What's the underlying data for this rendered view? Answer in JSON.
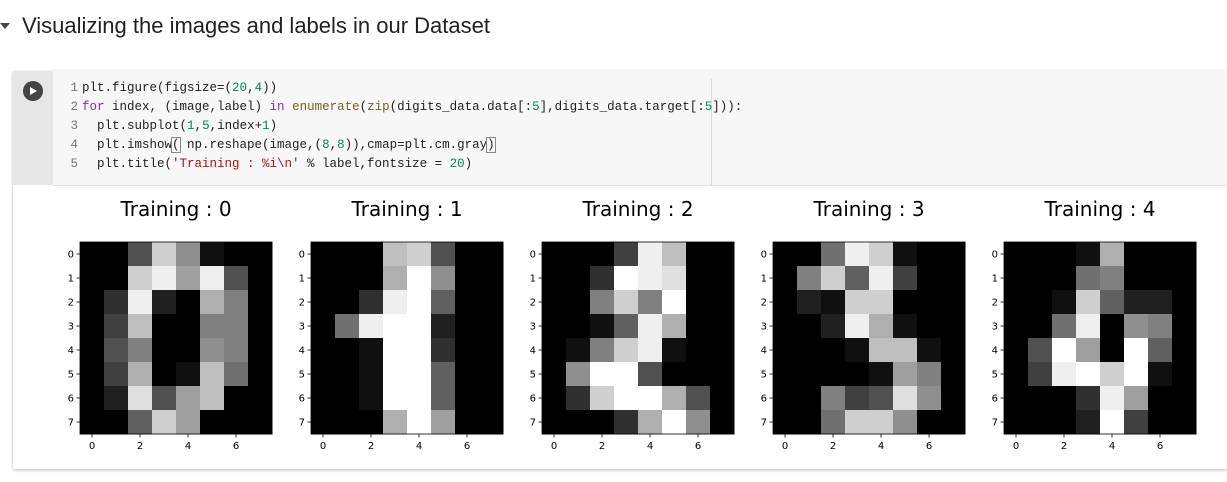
{
  "section": {
    "title": "Visualizing the images and labels in our Dataset"
  },
  "code_cell": {
    "line_numbers": [
      "1",
      "2",
      "3",
      "4",
      "5"
    ]
  },
  "output": {
    "panels": [
      {
        "title": "Training : 0",
        "label": 0,
        "pixels": [
          [
            0,
            0,
            5,
            13,
            9,
            1,
            0,
            0
          ],
          [
            0,
            0,
            13,
            15,
            10,
            15,
            5,
            0
          ],
          [
            0,
            3,
            15,
            2,
            0,
            11,
            8,
            0
          ],
          [
            0,
            4,
            12,
            0,
            0,
            8,
            8,
            0
          ],
          [
            0,
            5,
            8,
            0,
            0,
            9,
            8,
            0
          ],
          [
            0,
            4,
            11,
            0,
            1,
            12,
            7,
            0
          ],
          [
            0,
            2,
            14,
            5,
            10,
            12,
            0,
            0
          ],
          [
            0,
            0,
            6,
            13,
            10,
            0,
            0,
            0
          ]
        ]
      },
      {
        "title": "Training : 1",
        "label": 1,
        "pixels": [
          [
            0,
            0,
            0,
            12,
            13,
            5,
            0,
            0
          ],
          [
            0,
            0,
            0,
            11,
            16,
            9,
            0,
            0
          ],
          [
            0,
            0,
            3,
            15,
            16,
            6,
            0,
            0
          ],
          [
            0,
            7,
            15,
            16,
            16,
            2,
            0,
            0
          ],
          [
            0,
            0,
            1,
            16,
            16,
            3,
            0,
            0
          ],
          [
            0,
            0,
            1,
            16,
            16,
            6,
            0,
            0
          ],
          [
            0,
            0,
            1,
            16,
            16,
            6,
            0,
            0
          ],
          [
            0,
            0,
            0,
            11,
            16,
            10,
            0,
            0
          ]
        ]
      },
      {
        "title": "Training : 2",
        "label": 2,
        "pixels": [
          [
            0,
            0,
            0,
            4,
            15,
            12,
            0,
            0
          ],
          [
            0,
            0,
            3,
            16,
            15,
            14,
            0,
            0
          ],
          [
            0,
            0,
            8,
            13,
            8,
            16,
            0,
            0
          ],
          [
            0,
            0,
            1,
            6,
            15,
            11,
            0,
            0
          ],
          [
            0,
            1,
            8,
            13,
            15,
            1,
            0,
            0
          ],
          [
            0,
            9,
            16,
            16,
            5,
            0,
            0,
            0
          ],
          [
            0,
            3,
            13,
            16,
            16,
            11,
            5,
            0
          ],
          [
            0,
            0,
            0,
            3,
            11,
            16,
            9,
            0
          ]
        ]
      },
      {
        "title": "Training : 3",
        "label": 3,
        "pixels": [
          [
            0,
            0,
            7,
            15,
            13,
            1,
            0,
            0
          ],
          [
            0,
            8,
            13,
            6,
            15,
            4,
            0,
            0
          ],
          [
            0,
            2,
            1,
            13,
            13,
            0,
            0,
            0
          ],
          [
            0,
            0,
            2,
            15,
            11,
            1,
            0,
            0
          ],
          [
            0,
            0,
            0,
            1,
            12,
            12,
            1,
            0
          ],
          [
            0,
            0,
            0,
            0,
            1,
            10,
            8,
            0
          ],
          [
            0,
            0,
            8,
            4,
            5,
            14,
            9,
            0
          ],
          [
            0,
            0,
            7,
            13,
            13,
            9,
            0,
            0
          ]
        ]
      },
      {
        "title": "Training : 4",
        "label": 4,
        "pixels": [
          [
            0,
            0,
            0,
            1,
            11,
            0,
            0,
            0
          ],
          [
            0,
            0,
            0,
            7,
            8,
            0,
            0,
            0
          ],
          [
            0,
            0,
            1,
            13,
            6,
            2,
            2,
            0
          ],
          [
            0,
            0,
            7,
            15,
            0,
            9,
            8,
            0
          ],
          [
            0,
            5,
            16,
            10,
            0,
            16,
            6,
            0
          ],
          [
            0,
            4,
            15,
            16,
            13,
            16,
            1,
            0
          ],
          [
            0,
            0,
            0,
            3,
            15,
            10,
            0,
            0
          ],
          [
            0,
            0,
            0,
            2,
            16,
            4,
            0,
            0
          ]
        ]
      }
    ],
    "y_ticks": [
      "0",
      "1",
      "2",
      "3",
      "4",
      "5",
      "6",
      "7"
    ],
    "x_ticks": [
      "0",
      "2",
      "4",
      "6"
    ]
  }
}
